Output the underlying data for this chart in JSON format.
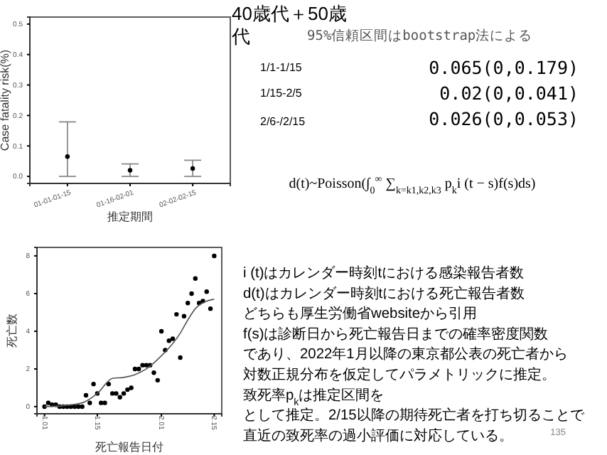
{
  "chart_data": [
    {
      "type": "scatter",
      "categories": [
        "01-01-01-15",
        "01-16-02-01",
        "02-02-02-15"
      ],
      "values": [
        0.065,
        0.02,
        0.026
      ],
      "errors": [
        [
          0,
          0.179
        ],
        [
          0,
          0.041
        ],
        [
          0,
          0.053
        ]
      ],
      "color": "#000000",
      "marker": "circle",
      "ylim": [
        -0.023,
        0.523
      ],
      "yticks": [
        {
          "value": 0,
          "label": "0.0"
        },
        {
          "value": 0.1,
          "label": "0.1"
        },
        {
          "value": 0.2,
          "label": "0.2"
        },
        {
          "value": 0.3,
          "label": "0.3"
        },
        {
          "value": 0.4,
          "label": "0.4"
        },
        {
          "value": 0.5,
          "label": "0.5"
        }
      ],
      "xlabel": "推定期間",
      "ylabel": "Case fatality risk(%)"
    },
    {
      "type": "scatter",
      "x": [
        "2022-01-01",
        "2022-01-02",
        "2022-01-03",
        "2022-01-04",
        "2022-01-05",
        "2022-01-06",
        "2022-01-07",
        "2022-01-08",
        "2022-01-09",
        "2022-01-10",
        "2022-01-11",
        "2022-01-12",
        "2022-01-13",
        "2022-01-14",
        "2022-01-15",
        "2022-01-16",
        "2022-01-17",
        "2022-01-18",
        "2022-01-19",
        "2022-01-20",
        "2022-01-21",
        "2022-01-22",
        "2022-01-23",
        "2022-01-24",
        "2022-01-25",
        "2022-01-26",
        "2022-01-27",
        "2022-01-28",
        "2022-01-29",
        "2022-01-30",
        "2022-01-31",
        "2022-02-01",
        "2022-02-02",
        "2022-02-03",
        "2022-02-04",
        "2022-02-05",
        "2022-02-06",
        "2022-02-07",
        "2022-02-08",
        "2022-02-09",
        "2022-02-10",
        "2022-02-11",
        "2022-02-12",
        "2022-02-13",
        "2022-02-14",
        "2022-02-15"
      ],
      "series": [
        {
          "type": "scatter",
          "marker": "circle",
          "color": "#000000",
          "values": [
            0,
            0.2,
            0.1,
            0.1,
            0,
            0,
            0,
            0,
            0,
            0,
            0,
            0.6,
            0.2,
            1.2,
            0.7,
            0.2,
            0.2,
            1.2,
            0.7,
            0.7,
            0.5,
            0.7,
            0.9,
            1.0,
            2.0,
            2.0,
            2.2,
            2.2,
            2.2,
            1.8,
            1.4,
            4.0,
            3.0,
            3.5,
            3.6,
            4.9,
            2.6,
            4.8,
            5.5,
            6.0,
            6.8,
            5.5,
            5.6,
            6.1,
            5.2,
            8.0
          ]
        },
        {
          "type": "line",
          "marker": "none",
          "color": "#555555",
          "x": [
            "2022-01-01",
            "2022-01-06",
            "2022-01-11",
            "2022-01-15",
            "2022-01-19",
            "2022-01-22",
            "2022-01-25",
            "2022-01-28",
            "2022-02-01",
            "2022-02-04",
            "2022-02-06",
            "2022-02-08",
            "2022-02-10",
            "2022-02-13",
            "2022-02-15"
          ],
          "values": [
            0,
            0.05,
            0.2,
            0.7,
            1.5,
            1.55,
            1.7,
            2.0,
            2.7,
            3.35,
            3.9,
            4.6,
            5.2,
            5.6,
            5.7
          ]
        }
      ],
      "xlim": [
        "2021-12-30",
        "2022-02-17"
      ],
      "xticks": [
        {
          "value": "2022-01-01",
          "label": "1.01"
        },
        {
          "value": "2022-01-15",
          "label": "1.15"
        },
        {
          "value": "2022-02-01",
          "label": "2.01"
        },
        {
          "value": "2022-02-15",
          "label": "2.15"
        }
      ],
      "ylim": [
        -0.38,
        8.45
      ],
      "yticks": [
        0,
        2,
        4,
        6,
        8
      ],
      "xlabel": "死亡報告日付",
      "ylabel": "死亡数"
    },
    {
      "type": "other",
      "title": "40歳代＋50歳代",
      "annotations": [
        "95%信頼区間はbootstrap法による",
        "1/1-1/15",
        "1/15-2/5",
        "2/6-/2/15",
        "0.065(0,0.179)",
        "0.02(0,0.041)",
        "0.026(0,0.053)",
        "d(t)~Poisson(∫$_{0}$$^{∞}$ ∑$_{k=k1,k2,k3}$ p$_{k}$i (t − s)f(s)ds)",
        "i (t)はカレンダー時刻tにおける感染報告者数",
        "d(t)はカレンダー時刻tにおける死亡報告者数",
        "どちらも厚生労働省websiteから引用",
        "f(s)は診断日から死亡報告日までの確率密度関数",
        "であり、2022年1月以降の東京都公表の死亡者から",
        "対数正規分布を仮定してパラメトリックに推定。",
        "致死率p$_{k}$は推定区間を",
        "として推定。2/15以降の期待死亡者を打ち切ることで",
        "直近の致死率の過小評価に対応している。",
        "135"
      ]
    }
  ]
}
